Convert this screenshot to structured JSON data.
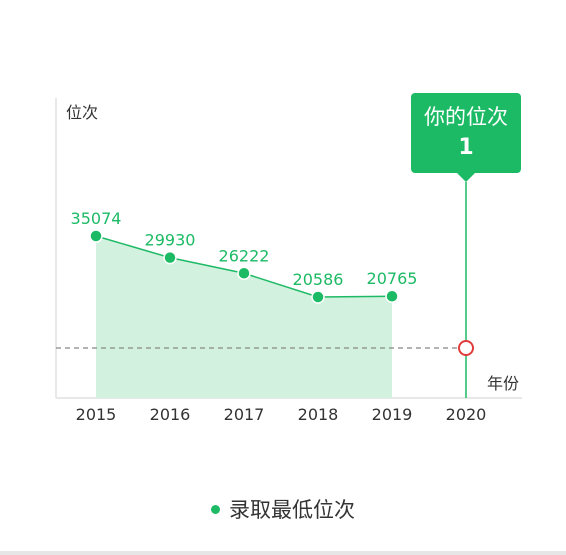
{
  "chart_data": {
    "type": "area",
    "ylabel": "位次",
    "xlabel": "年份",
    "categories": [
      "2015",
      "2016",
      "2017",
      "2018",
      "2019",
      "2020"
    ],
    "series": [
      {
        "name": "录取最低位次",
        "x": [
          "2015",
          "2016",
          "2017",
          "2018",
          "2019"
        ],
        "values": [
          35074,
          29930,
          26222,
          20586,
          20765
        ]
      }
    ],
    "your_rank": {
      "label": "你的位次",
      "value": "1",
      "x": "2020"
    },
    "grid": false,
    "legend_position": "bottom-center"
  },
  "colors": {
    "accent": "#1dba65",
    "area_fill": "#d3f1df",
    "marker_ring": "#e23b3b",
    "dashed_line": "#888888",
    "axis": "#e8e8e8",
    "text": "#333333"
  }
}
